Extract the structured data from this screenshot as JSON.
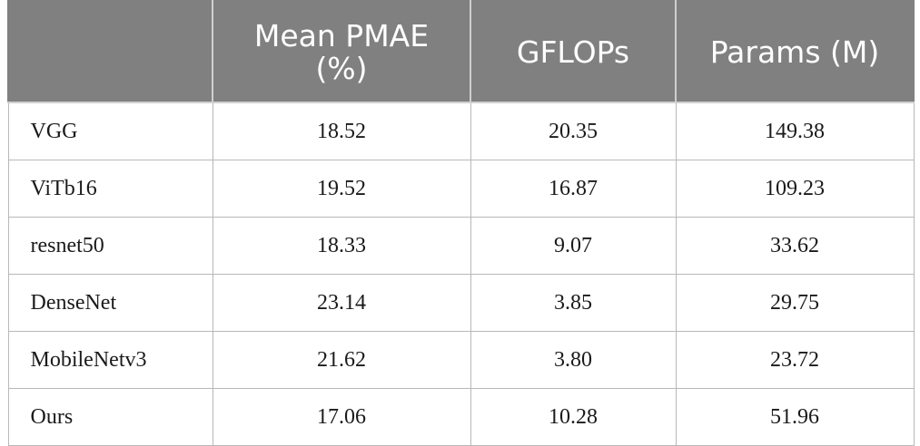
{
  "table": {
    "headers": [
      "",
      "Mean PMAE (%)",
      "GFLOPs",
      "Params (M)"
    ],
    "rows": [
      [
        "VGG",
        "18.52",
        "20.35",
        "149.38"
      ],
      [
        "ViTb16",
        "19.52",
        "16.87",
        "109.23"
      ],
      [
        "resnet50",
        "18.33",
        "9.07",
        "33.62"
      ],
      [
        "DenseNet",
        "23.14",
        "3.85",
        "29.75"
      ],
      [
        "MobileNetv3",
        "21.62",
        "3.80",
        "23.72"
      ],
      [
        "Ours",
        "17.06",
        "10.28",
        "51.96"
      ]
    ]
  }
}
